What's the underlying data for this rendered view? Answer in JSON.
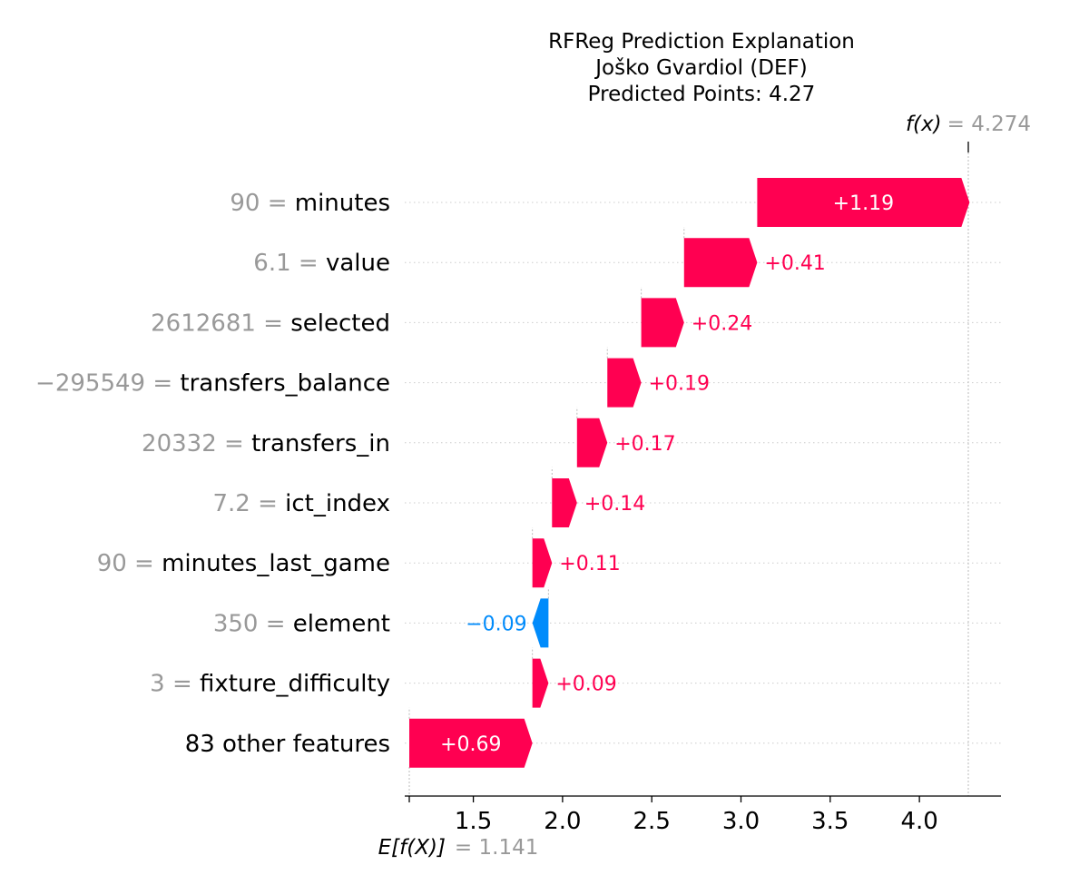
{
  "chart_data": {
    "type": "waterfall",
    "title_lines": [
      "RFReg Prediction Explanation",
      "Joško Gvardiol (DEF)",
      "Predicted Points: 4.27"
    ],
    "base_value": 1.141,
    "base_label_text": "E[f(X)]",
    "base_value_text": "= 1.141",
    "output_value": 4.274,
    "output_label_text": "f(x)",
    "output_value_text": "= 4.274",
    "xlim": [
      1.141,
      4.274
    ],
    "xticks": [
      1.5,
      2.0,
      2.5,
      3.0,
      3.5,
      4.0
    ],
    "xtick_labels": [
      "1.5",
      "2.0",
      "2.5",
      "3.0",
      "3.5",
      "4.0"
    ],
    "features": [
      {
        "value": "90",
        "name": "minutes",
        "contribution": 1.19,
        "label": "+1.19"
      },
      {
        "value": "6.1",
        "name": "value",
        "contribution": 0.41,
        "label": "+0.41"
      },
      {
        "value": "2612681",
        "name": "selected",
        "contribution": 0.24,
        "label": "+0.24"
      },
      {
        "value": "−295549",
        "name": "transfers_balance",
        "contribution": 0.19,
        "label": "+0.19"
      },
      {
        "value": "20332",
        "name": "transfers_in",
        "contribution": 0.17,
        "label": "+0.17"
      },
      {
        "value": "7.2",
        "name": "ict_index",
        "contribution": 0.14,
        "label": "+0.14"
      },
      {
        "value": "90",
        "name": "minutes_last_game",
        "contribution": 0.11,
        "label": "+0.11"
      },
      {
        "value": "350",
        "name": "element",
        "contribution": -0.09,
        "label": "−0.09"
      },
      {
        "value": "3",
        "name": "fixture_difficulty",
        "contribution": 0.09,
        "label": "+0.09"
      },
      {
        "value": "",
        "name": "83 other features",
        "contribution": 0.69,
        "label": "+0.69"
      }
    ],
    "colors": {
      "positive": "#ff0051",
      "negative": "#008bfb",
      "muted": "#999999"
    }
  }
}
